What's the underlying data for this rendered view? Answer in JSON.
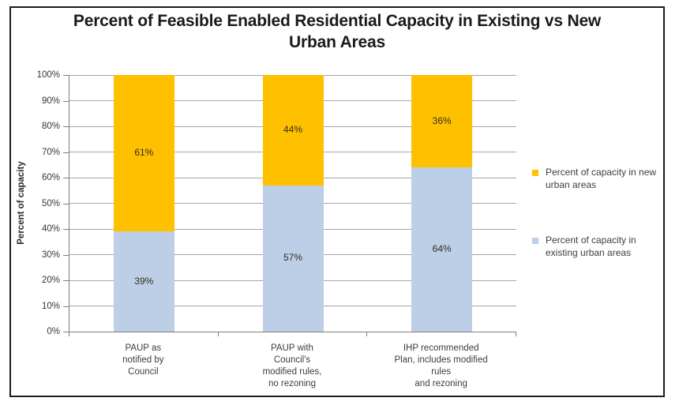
{
  "title": {
    "full": "Percent of Feasible Enabled Residential Capacity in Existing vs New Urban Areas",
    "line1": "Percent of Feasible Enabled Residential Capacity in Existing vs New",
    "line2": "Urban Areas"
  },
  "y_axis": {
    "label": "Percent of capacity",
    "tick_labels": [
      "100%",
      "90%",
      "80%",
      "70%",
      "60%",
      "50%",
      "40%",
      "30%",
      "20%",
      "10%",
      "0%"
    ]
  },
  "legend": {
    "items": [
      {
        "key": "new-urban-areas",
        "color": "#FFC000",
        "lines": [
          "Percent of capacity in new",
          "urban areas"
        ]
      },
      {
        "key": "existing-urban-areas",
        "color": "#BCCFE6",
        "lines": [
          "Percent of capacity in",
          "existing urban areas"
        ]
      }
    ]
  },
  "chart_data": {
    "type": "bar",
    "stacked": true,
    "title": "Percent of Feasible Enabled Residential Capacity in Existing vs New Urban Areas",
    "categories": [
      "PAUP as notified by Council",
      "PAUP with Council's modified rules, no rezoning",
      "IHP recommended Plan, includes modified rules and rezoning"
    ],
    "category_label_lines": [
      [
        "PAUP as",
        "notified by",
        "Council"
      ],
      [
        "PAUP with",
        "Council's",
        "modified rules,",
        "no rezoning"
      ],
      [
        "IHP recommended",
        "Plan, includes modified",
        "rules",
        "and rezoning"
      ]
    ],
    "series": [
      {
        "name": "Percent of capacity in existing urban areas",
        "color": "#BCCFE6",
        "values": [
          39,
          57,
          64
        ],
        "data_labels": [
          "39%",
          "57%",
          "64%"
        ]
      },
      {
        "name": "Percent of capacity in new urban areas",
        "color": "#FFC000",
        "values": [
          61,
          44,
          36
        ],
        "data_labels": [
          "61%",
          "44%",
          "36%"
        ]
      }
    ],
    "xlabel": "",
    "ylabel": "Percent of capacity",
    "ylim": [
      0,
      100
    ],
    "ytick_step": 10,
    "grid": true,
    "legend_position": "right"
  },
  "colors": {
    "grid": "#A6A6A6",
    "axis": "#7F7F7F",
    "label_text": "#3D3D3D",
    "title_text": "#1A1A1A",
    "frame_border": "#1C1C1C"
  }
}
